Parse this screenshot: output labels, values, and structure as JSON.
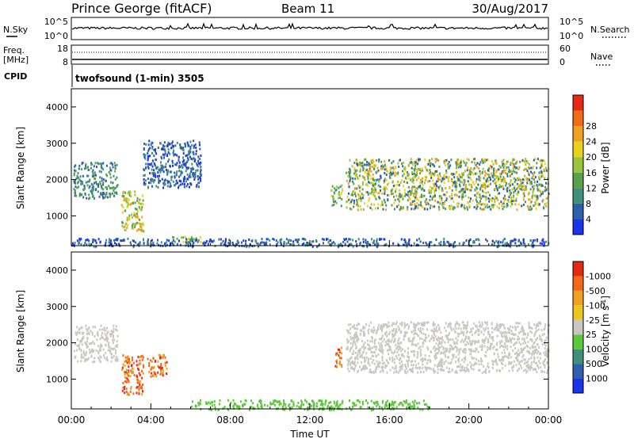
{
  "header": {
    "station": "Prince George (fitACF)",
    "beam": "Beam 11",
    "date": "30/Aug/2017"
  },
  "top_panel": {
    "left_label": "N.Sky",
    "left_ticks": [
      "10^5",
      "10^0"
    ],
    "right_ticks": [
      "10^5",
      "10^0"
    ],
    "right_label": "N.Search"
  },
  "freq_panel": {
    "left_label": "Freq.",
    "left_unit": "[MHz]",
    "left_ticks": [
      "18",
      "8"
    ],
    "right_ticks": [
      "60",
      "0"
    ],
    "right_label": "Nave",
    "cpid_label": "CPID",
    "cpid_text": "twofsound (1-min) 3505"
  },
  "chart_data": [
    {
      "type": "heatmap",
      "title": "",
      "xlabel": "",
      "ylabel": "Slant Range [km]",
      "ylim": [
        180,
        4500
      ],
      "yticks": [
        "1000",
        "2000",
        "3000",
        "4000"
      ],
      "colorbar": {
        "label": "Power [dB]",
        "ticks": [
          "4",
          "8",
          "12",
          "16",
          "20",
          "24",
          "28"
        ],
        "colors": [
          "#1a35e8",
          "#2e5fa8",
          "#3f8f7a",
          "#5aa04a",
          "#9ac43a",
          "#e8d21c",
          "#f0a020",
          "#f06a18",
          "#e42a14"
        ]
      },
      "features": [
        {
          "t_hours": [
            0.1,
            2.3
          ],
          "range_km": [
            1500,
            2500
          ],
          "level": "8-16 dB"
        },
        {
          "t_hours": [
            2.5,
            3.6
          ],
          "range_km": [
            600,
            1700
          ],
          "level": "16-28 dB"
        },
        {
          "t_hours": [
            3.6,
            6.5
          ],
          "range_km": [
            1800,
            3100
          ],
          "level": "4-12 dB"
        },
        {
          "t_hours": [
            5.0,
            6.5
          ],
          "range_km": [
            300,
            450
          ],
          "level": "16-24 dB"
        },
        {
          "t_hours": [
            13.0,
            13.6
          ],
          "range_km": [
            1300,
            1900
          ],
          "level": "12-24 dB"
        },
        {
          "t_hours": [
            13.8,
            24.0
          ],
          "range_km": [
            1200,
            2600
          ],
          "level": "8-28 dB"
        },
        {
          "t_hours": [
            0.0,
            24.0
          ],
          "range_km": [
            180,
            400
          ],
          "level": "4-12 dB"
        }
      ]
    },
    {
      "type": "heatmap",
      "title": "",
      "xlabel": "Time UT",
      "ylabel": "Slant Range [km]",
      "ylim": [
        180,
        4500
      ],
      "xticks": [
        "00:00",
        "04:00",
        "08:00",
        "12:00",
        "16:00",
        "20:00",
        "00:00"
      ],
      "yticks": [
        "1000",
        "2000",
        "3000",
        "4000"
      ],
      "colorbar": {
        "label": "Velocity [m s^-1]",
        "ticks": [
          "1000",
          "500",
          "100",
          "25",
          "-25",
          "-100",
          "-500",
          "-1000"
        ],
        "colors": [
          "#1a35e8",
          "#2e5fa8",
          "#3f8f7a",
          "#5ac83a",
          "#c8c8c0",
          "#e8c81c",
          "#f0a020",
          "#f06a18",
          "#e42a14"
        ]
      },
      "features": [
        {
          "t_hours": [
            0.1,
            2.3
          ],
          "range_km": [
            1500,
            2500
          ],
          "velocity": "-25 to 25"
        },
        {
          "t_hours": [
            2.5,
            3.6
          ],
          "range_km": [
            600,
            1700
          ],
          "velocity": "-500 to -1000"
        },
        {
          "t_hours": [
            3.8,
            4.8
          ],
          "range_km": [
            1100,
            1700
          ],
          "velocity": "-500 to -1000"
        },
        {
          "t_hours": [
            13.2,
            13.6
          ],
          "range_km": [
            1300,
            1900
          ],
          "velocity": "-500 to -1000"
        },
        {
          "t_hours": [
            13.8,
            24.0
          ],
          "range_km": [
            1200,
            2600
          ],
          "velocity": "-25 to 25"
        },
        {
          "t_hours": [
            6.0,
            18.0
          ],
          "range_km": [
            180,
            450
          ],
          "velocity": "25 to 100"
        }
      ]
    }
  ]
}
